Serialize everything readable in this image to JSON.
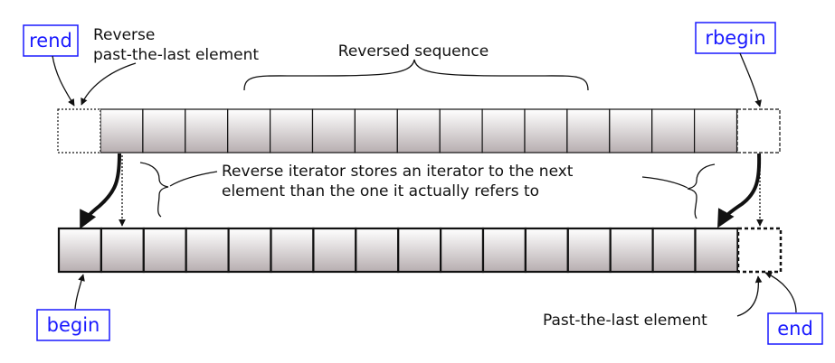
{
  "labels": {
    "rend": "rend",
    "rbegin": "rbegin",
    "begin": "begin",
    "end": "end",
    "reverse_past_line1": "Reverse",
    "reverse_past_line2": "past-the-last element",
    "reversed_sequence": "Reversed sequence",
    "note_line1": "Reverse iterator stores an iterator to the next",
    "note_line2": "element than the one it actually refers to",
    "past_the_last": "Past-the-last element"
  },
  "sequences": {
    "reversed_row_cells": 15,
    "forward_row_cells": 16
  },
  "colors": {
    "cell_top": "#ffffff",
    "cell_bottom": "#b7aeb0",
    "stroke": "#111111",
    "iterator_text": "#1a1aff",
    "iterator_border": "#1a1aff"
  }
}
